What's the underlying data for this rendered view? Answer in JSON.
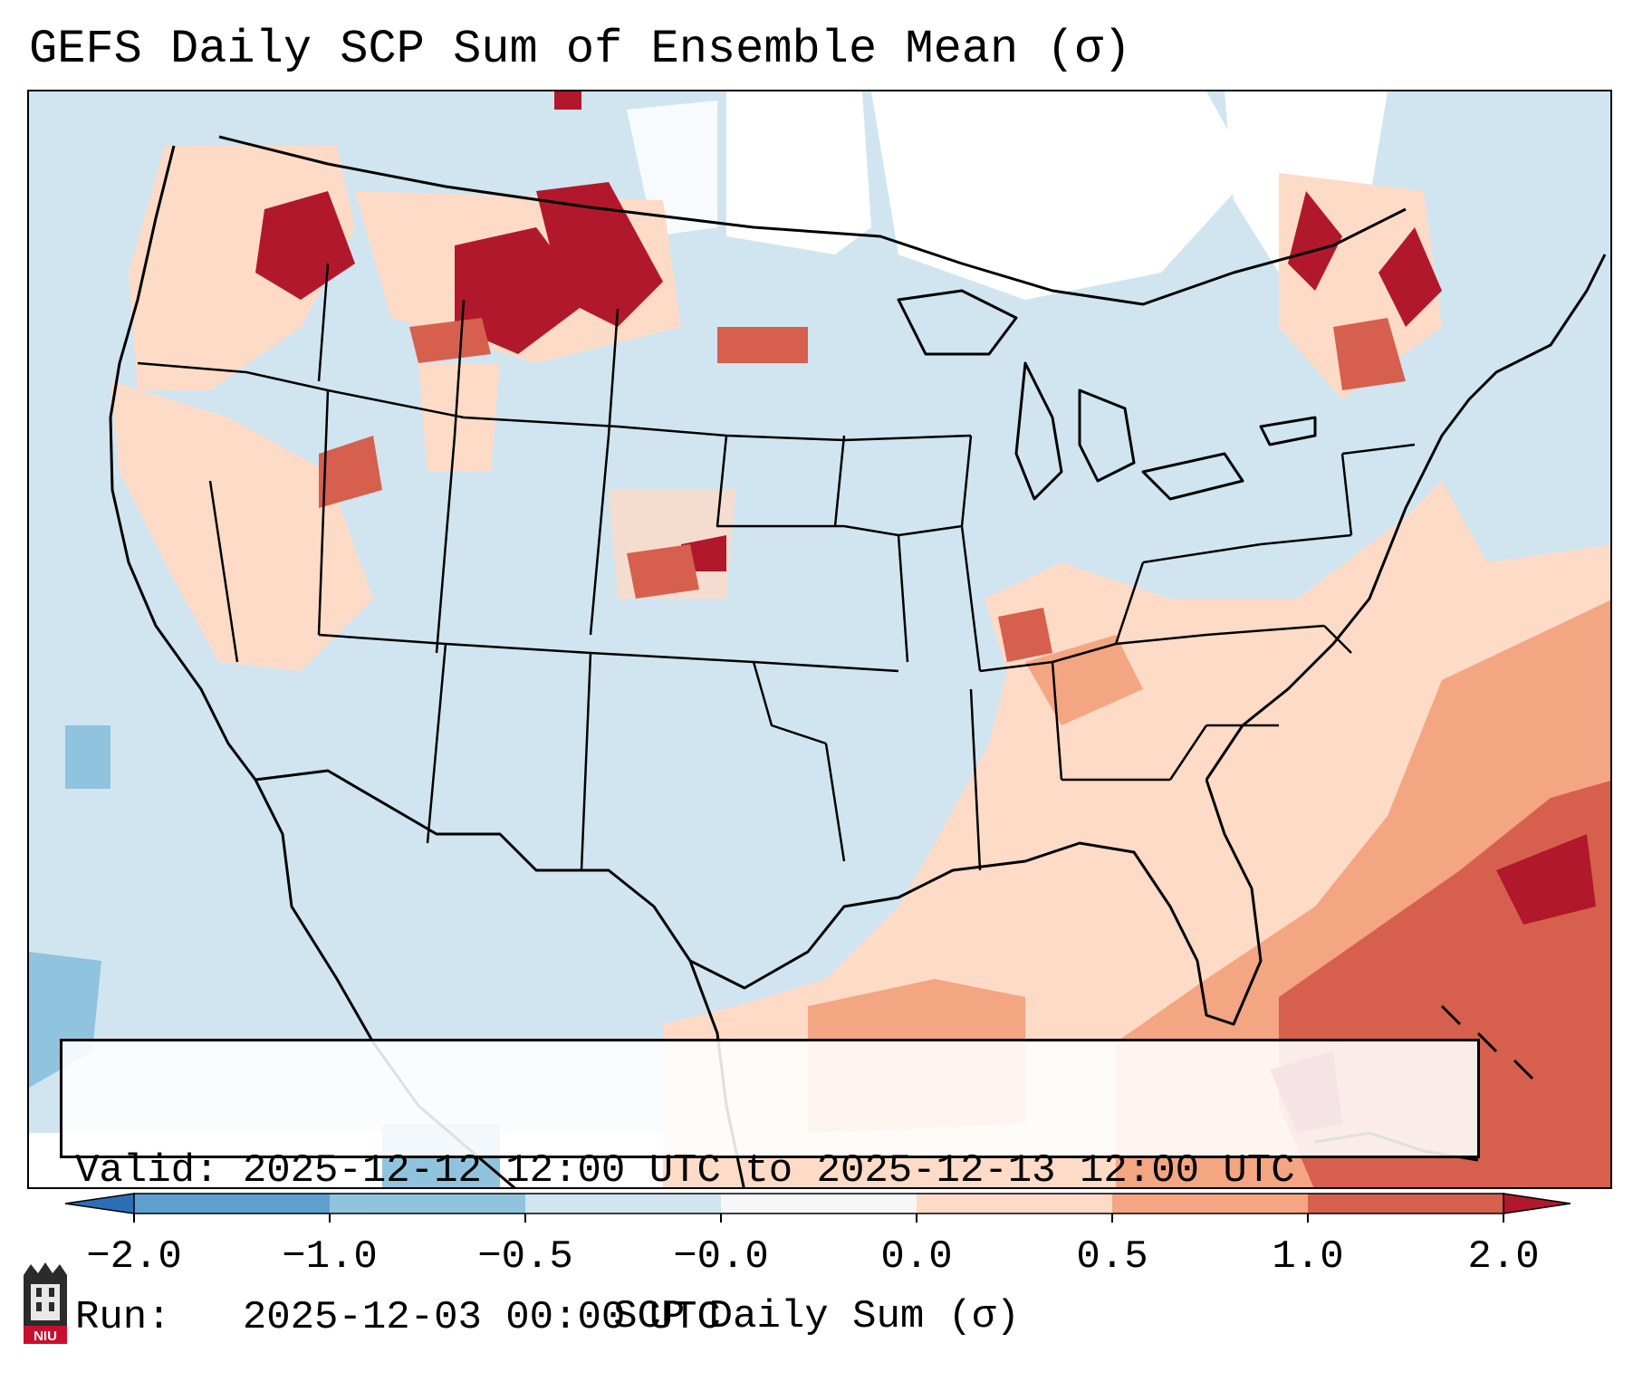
{
  "title": "GEFS Daily SCP Sum of Ensemble Mean (σ)",
  "info": {
    "valid_line": "Valid: 2025-12-12 12:00 UTC to 2025-12-13 12:00 UTC",
    "run_line": "Run:   2025-12-03 00:00 UTC"
  },
  "colorbar": {
    "label": "SCP Daily Sum (σ)",
    "ticks": [
      "−2.0",
      "−1.0",
      "−0.5",
      "−0.0",
      "0.0",
      "0.5",
      "1.0",
      "2.0"
    ],
    "colors": [
      "#2c6fb6",
      "#5da0cf",
      "#90c3dd",
      "#d1e5f0",
      "#f7f7f7",
      "#fddbc7",
      "#f4a582",
      "#d6604d",
      "#b2182b"
    ]
  },
  "logo": {
    "text": "NIU"
  }
}
